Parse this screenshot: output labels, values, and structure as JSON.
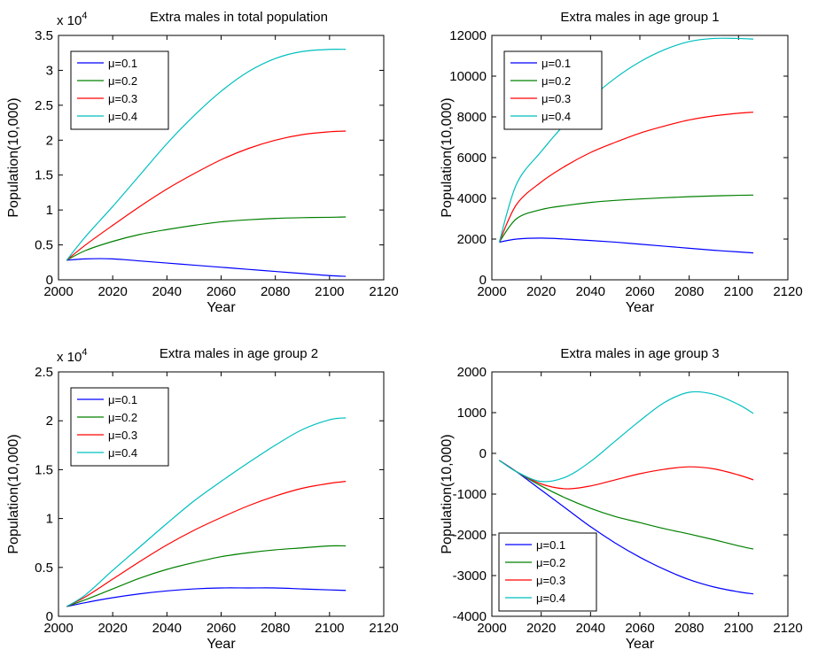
{
  "chart_data": [
    {
      "type": "line",
      "title": "Extra males in total population",
      "xlabel": "Year",
      "ylabel": "Population(10,000)",
      "multiplier": {
        "base": "x 10",
        "exp": "4"
      },
      "xlim": [
        2000,
        2120
      ],
      "ylim": [
        0,
        3.5
      ],
      "xticks": [
        2000,
        2020,
        2040,
        2060,
        2080,
        2100,
        2120
      ],
      "yticks": [
        0,
        0.5,
        1,
        1.5,
        2,
        2.5,
        3,
        3.5
      ],
      "legend": "top-left",
      "x": [
        2003,
        2010,
        2020,
        2030,
        2040,
        2050,
        2060,
        2070,
        2080,
        2090,
        2100,
        2106
      ],
      "series": [
        {
          "name": "μ=0.1",
          "color": "#0000ff",
          "values": [
            0.28,
            0.3,
            0.3,
            0.27,
            0.24,
            0.21,
            0.18,
            0.15,
            0.12,
            0.09,
            0.06,
            0.05
          ]
        },
        {
          "name": "μ=0.2",
          "color": "#008000",
          "values": [
            0.28,
            0.42,
            0.55,
            0.65,
            0.72,
            0.78,
            0.83,
            0.86,
            0.88,
            0.89,
            0.895,
            0.9
          ]
        },
        {
          "name": "μ=0.3",
          "color": "#ff0000",
          "values": [
            0.28,
            0.5,
            0.78,
            1.05,
            1.3,
            1.52,
            1.72,
            1.88,
            2.0,
            2.08,
            2.12,
            2.13
          ]
        },
        {
          "name": "μ=0.4",
          "color": "#00bfbf",
          "values": [
            0.28,
            0.62,
            1.05,
            1.5,
            1.95,
            2.35,
            2.7,
            2.98,
            3.17,
            3.27,
            3.3,
            3.3
          ]
        }
      ]
    },
    {
      "type": "line",
      "title": "Extra males in age group 1",
      "xlabel": "Year",
      "ylabel": "Population(10,000)",
      "xlim": [
        2000,
        2120
      ],
      "ylim": [
        0,
        12000
      ],
      "xticks": [
        2000,
        2020,
        2040,
        2060,
        2080,
        2100,
        2120
      ],
      "yticks": [
        0,
        2000,
        4000,
        6000,
        8000,
        10000,
        12000
      ],
      "legend": "top-left",
      "x": [
        2003,
        2010,
        2020,
        2030,
        2040,
        2050,
        2060,
        2070,
        2080,
        2090,
        2100,
        2106
      ],
      "series": [
        {
          "name": "μ=0.1",
          "color": "#0000ff",
          "values": [
            1850,
            2000,
            2050,
            2000,
            1930,
            1850,
            1750,
            1650,
            1550,
            1450,
            1370,
            1320
          ]
        },
        {
          "name": "μ=0.2",
          "color": "#008000",
          "values": [
            1850,
            3000,
            3450,
            3650,
            3800,
            3900,
            3970,
            4030,
            4080,
            4120,
            4150,
            4160
          ]
        },
        {
          "name": "μ=0.3",
          "color": "#ff0000",
          "values": [
            1850,
            3700,
            4800,
            5600,
            6250,
            6750,
            7200,
            7550,
            7850,
            8050,
            8180,
            8230
          ]
        },
        {
          "name": "μ=0.4",
          "color": "#00bfbf",
          "values": [
            1850,
            4700,
            6300,
            7700,
            8900,
            9900,
            10700,
            11300,
            11700,
            11850,
            11850,
            11820
          ]
        }
      ]
    },
    {
      "type": "line",
      "title": "Extra males in age group 2",
      "xlabel": "Year",
      "ylabel": "Population(10,000)",
      "multiplier": {
        "base": "x 10",
        "exp": "4"
      },
      "xlim": [
        2000,
        2120
      ],
      "ylim": [
        0,
        2.5
      ],
      "xticks": [
        2000,
        2020,
        2040,
        2060,
        2080,
        2100,
        2120
      ],
      "yticks": [
        0,
        0.5,
        1,
        1.5,
        2,
        2.5
      ],
      "legend": "top-left",
      "x": [
        2003,
        2010,
        2020,
        2030,
        2040,
        2050,
        2060,
        2070,
        2080,
        2090,
        2100,
        2106
      ],
      "series": [
        {
          "name": "μ=0.1",
          "color": "#0000ff",
          "values": [
            0.1,
            0.14,
            0.19,
            0.23,
            0.26,
            0.28,
            0.29,
            0.29,
            0.29,
            0.28,
            0.27,
            0.265
          ]
        },
        {
          "name": "μ=0.2",
          "color": "#008000",
          "values": [
            0.1,
            0.17,
            0.28,
            0.39,
            0.48,
            0.55,
            0.61,
            0.65,
            0.68,
            0.7,
            0.72,
            0.72
          ]
        },
        {
          "name": "μ=0.3",
          "color": "#ff0000",
          "values": [
            0.1,
            0.2,
            0.38,
            0.56,
            0.73,
            0.88,
            1.01,
            1.13,
            1.23,
            1.31,
            1.36,
            1.38
          ]
        },
        {
          "name": "μ=0.4",
          "color": "#00bfbf",
          "values": [
            0.1,
            0.22,
            0.47,
            0.71,
            0.95,
            1.18,
            1.38,
            1.57,
            1.75,
            1.91,
            2.01,
            2.03
          ]
        }
      ]
    },
    {
      "type": "line",
      "title": "Extra males in age group 3",
      "xlabel": "Year",
      "ylabel": "Population(10,000)",
      "xlim": [
        2000,
        2120
      ],
      "ylim": [
        -4000,
        2000
      ],
      "xticks": [
        2000,
        2020,
        2040,
        2060,
        2080,
        2100,
        2120
      ],
      "yticks": [
        -4000,
        -3000,
        -2000,
        -1000,
        0,
        1000,
        2000
      ],
      "legend": "bottom-left",
      "x": [
        2003,
        2010,
        2020,
        2030,
        2040,
        2050,
        2060,
        2070,
        2080,
        2090,
        2100,
        2106
      ],
      "series": [
        {
          "name": "μ=0.1",
          "color": "#0000ff",
          "values": [
            -170,
            -450,
            -900,
            -1350,
            -1800,
            -2200,
            -2550,
            -2850,
            -3100,
            -3280,
            -3400,
            -3450
          ]
        },
        {
          "name": "μ=0.2",
          "color": "#008000",
          "values": [
            -170,
            -450,
            -800,
            -1100,
            -1350,
            -1550,
            -1700,
            -1850,
            -1980,
            -2120,
            -2270,
            -2350
          ]
        },
        {
          "name": "μ=0.3",
          "color": "#ff0000",
          "values": [
            -170,
            -450,
            -750,
            -870,
            -800,
            -650,
            -500,
            -390,
            -330,
            -380,
            -530,
            -650
          ]
        },
        {
          "name": "μ=0.4",
          "color": "#00bfbf",
          "values": [
            -170,
            -450,
            -690,
            -580,
            -200,
            300,
            800,
            1250,
            1500,
            1450,
            1200,
            980
          ]
        }
      ]
    }
  ]
}
